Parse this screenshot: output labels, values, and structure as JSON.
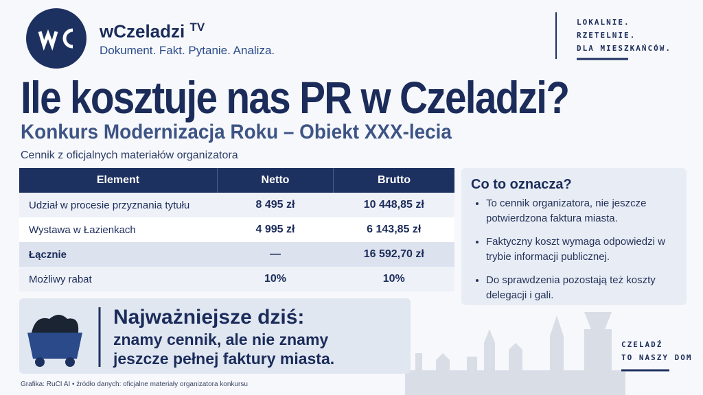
{
  "header": {
    "brand": "wCzeladzi",
    "brand_suffix": "TV",
    "tagline": "Dokument. Fakt. Pytanie. Analiza.",
    "motto": [
      "LOKALNIE.",
      "RZETELNIE.",
      "DLA MIESZKAŃCÓW."
    ]
  },
  "title": "Ile kosztuje nas PR w Czeladzi?",
  "subtitle": "Konkurs Modernizacja Roku – Obiekt XXX-lecia",
  "note": "Cennik z oficjalnych materiałów organizatora",
  "table": {
    "header": [
      "Element",
      "Netto",
      "Brutto"
    ],
    "rows": [
      [
        "Udział w procesie przyznania tytułu",
        "8 495 zł",
        "10 448,85 zł"
      ],
      [
        "Wystawa w Łazienkach",
        "4 995 zł",
        "6 143,85 zł"
      ],
      [
        "Łącznie",
        "—",
        "16 592,70 zł"
      ],
      [
        "Możliwy rabat",
        "10%",
        "10%"
      ]
    ]
  },
  "info": {
    "title": "Co to oznacza?",
    "items": [
      "To cennik organizatora, nie jeszcze potwierdzona faktura miasta.",
      "Faktyczny koszt wymaga odpowiedzi w trybie informacji publicznej.",
      "Do sprawdzenia pozostają też koszty delegacji i gali."
    ]
  },
  "highlight": {
    "heading": "Najważniejsze dziś:",
    "lines": [
      "znamy cennik, ale nie znamy",
      "jeszcze pełnej faktury miasta."
    ]
  },
  "footer": {
    "credit": "Grafika: RuCI AI • źródło danych: oficjalne materiały organizatora konkursu",
    "slogan": [
      "CZELADŹ",
      "TO NASZY DOM"
    ]
  }
}
